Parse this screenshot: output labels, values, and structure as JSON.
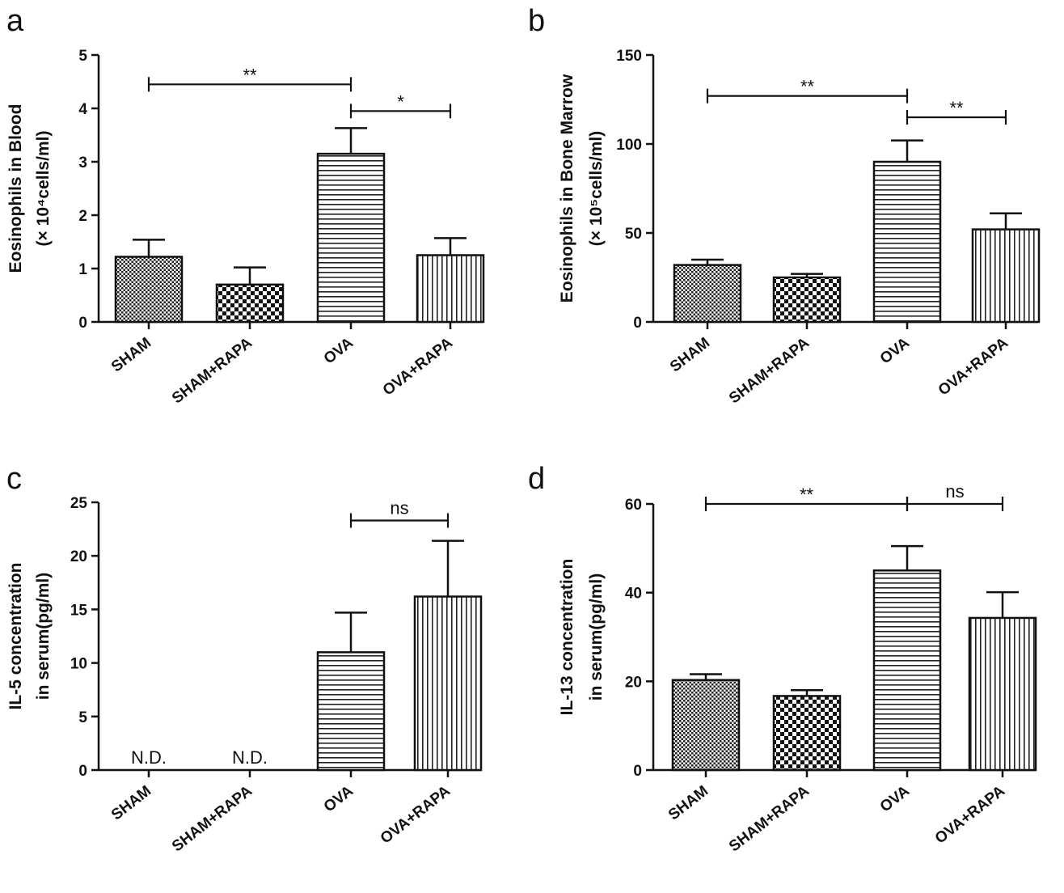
{
  "chart_data": [
    {
      "panel": "a",
      "type": "bar",
      "categories": [
        "SHAM",
        "SHAM+RAPA",
        "OVA",
        "OVA+RAPA"
      ],
      "values": [
        1.22,
        0.7,
        3.15,
        1.25
      ],
      "errors": [
        0.32,
        0.32,
        0.48,
        0.32
      ],
      "ylabel_lines": [
        "Eosinophils in Blood",
        "(× 10⁴cells/ml)"
      ],
      "ylim": [
        0,
        5
      ],
      "yticks": [
        0,
        1,
        2,
        3,
        4,
        5
      ],
      "nd_labels": [
        "",
        "",
        "",
        ""
      ],
      "significance": [
        {
          "from": 0,
          "to": 2,
          "label": "**",
          "level": 4.45
        },
        {
          "from": 2,
          "to": 3,
          "label": "*",
          "level": 3.95
        }
      ]
    },
    {
      "panel": "b",
      "type": "bar",
      "categories": [
        "SHAM",
        "SHAM+RAPA",
        "OVA",
        "OVA+RAPA"
      ],
      "values": [
        32,
        25,
        90,
        52
      ],
      "errors": [
        3,
        2,
        12,
        9
      ],
      "ylabel_lines": [
        "Eosinophils in Bone Marrow",
        "(× 10⁵cells/ml)"
      ],
      "ylim": [
        0,
        150
      ],
      "yticks": [
        0,
        50,
        100,
        150
      ],
      "nd_labels": [
        "",
        "",
        "",
        ""
      ],
      "significance": [
        {
          "from": 0,
          "to": 2,
          "label": "**",
          "level": 127
        },
        {
          "from": 2,
          "to": 3,
          "label": "**",
          "level": 115
        }
      ]
    },
    {
      "panel": "c",
      "type": "bar",
      "categories": [
        "SHAM",
        "SHAM+RAPA",
        "OVA",
        "OVA+RAPA"
      ],
      "values": [
        null,
        null,
        11.0,
        16.2
      ],
      "errors": [
        null,
        null,
        3.7,
        5.2
      ],
      "ylabel_lines": [
        "IL-5 concentration",
        "in serum(pg/ml)"
      ],
      "ylim": [
        0,
        25
      ],
      "yticks": [
        0,
        5,
        10,
        15,
        20,
        25
      ],
      "nd_labels": [
        "N.D.",
        "N.D.",
        "",
        ""
      ],
      "significance": [
        {
          "from": 2,
          "to": 3,
          "label": "ns",
          "level": 23.3
        }
      ]
    },
    {
      "panel": "d",
      "type": "bar",
      "categories": [
        "SHAM",
        "SHAM+RAPA",
        "OVA",
        "OVA+RAPA"
      ],
      "values": [
        20.3,
        16.7,
        45.0,
        34.3
      ],
      "errors": [
        1.3,
        1.3,
        5.5,
        5.8
      ],
      "ylabel_lines": [
        "IL-13 concentration",
        "in serum(pg/ml)"
      ],
      "ylim": [
        0,
        60
      ],
      "yticks": [
        0,
        20,
        40,
        60
      ],
      "nd_labels": [
        "",
        "",
        "",
        ""
      ],
      "significance": [
        {
          "from": 0,
          "to": 2,
          "label": "**",
          "level": 60
        },
        {
          "from": 2,
          "to": 3,
          "label": "ns",
          "level": 60
        }
      ]
    }
  ]
}
